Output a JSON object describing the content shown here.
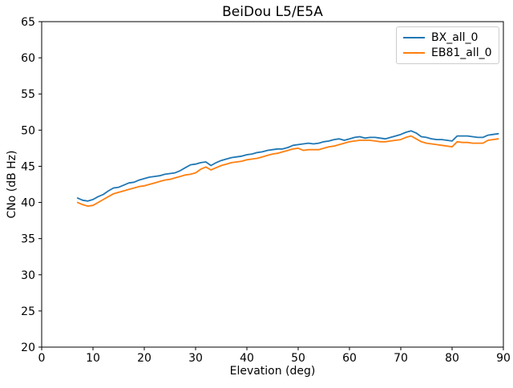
{
  "chart_data": {
    "type": "line",
    "title": "BeiDou L5/E5A",
    "xlabel": "Elevation (deg)",
    "ylabel": "CNo (dB Hz)",
    "xlim": [
      0,
      90
    ],
    "ylim": [
      20,
      65
    ],
    "x_ticks": [
      0,
      10,
      20,
      30,
      40,
      50,
      60,
      70,
      80,
      90
    ],
    "y_ticks": [
      20,
      25,
      30,
      35,
      40,
      45,
      50,
      55,
      60,
      65
    ],
    "grid": false,
    "legend_position": "upper right",
    "x": [
      7,
      8,
      9,
      10,
      11,
      12,
      13,
      14,
      15,
      16,
      17,
      18,
      19,
      20,
      21,
      22,
      23,
      24,
      25,
      26,
      27,
      28,
      29,
      30,
      31,
      32,
      33,
      34,
      35,
      36,
      37,
      38,
      39,
      40,
      41,
      42,
      43,
      44,
      45,
      46,
      47,
      48,
      49,
      50,
      51,
      52,
      53,
      54,
      55,
      56,
      57,
      58,
      59,
      60,
      61,
      62,
      63,
      64,
      65,
      66,
      67,
      68,
      69,
      70,
      71,
      72,
      73,
      74,
      75,
      76,
      77,
      78,
      79,
      80,
      81,
      82,
      83,
      84,
      85,
      86,
      87,
      88,
      89
    ],
    "series": [
      {
        "name": "BX_all_0",
        "color": "#1f77b4",
        "values": [
          40.6,
          40.3,
          40.2,
          40.4,
          40.8,
          41.1,
          41.6,
          42.0,
          42.1,
          42.4,
          42.7,
          42.8,
          43.1,
          43.3,
          43.5,
          43.6,
          43.7,
          43.9,
          44.0,
          44.1,
          44.4,
          44.8,
          45.2,
          45.3,
          45.5,
          45.6,
          45.1,
          45.5,
          45.8,
          46.0,
          46.2,
          46.3,
          46.4,
          46.6,
          46.7,
          46.9,
          47.0,
          47.2,
          47.3,
          47.4,
          47.4,
          47.6,
          47.9,
          48.0,
          48.1,
          48.2,
          48.1,
          48.2,
          48.4,
          48.5,
          48.7,
          48.8,
          48.6,
          48.8,
          49.0,
          49.1,
          48.9,
          49.0,
          49.0,
          48.9,
          48.8,
          49.0,
          49.2,
          49.4,
          49.7,
          49.9,
          49.6,
          49.1,
          49.0,
          48.8,
          48.7,
          48.7,
          48.6,
          48.5,
          49.2,
          49.2,
          49.2,
          49.1,
          49.0,
          49.0,
          49.3,
          49.4,
          49.5
        ]
      },
      {
        "name": "EB81_all_0",
        "color": "#ff7f0e",
        "values": [
          40.0,
          39.7,
          39.5,
          39.6,
          40.0,
          40.4,
          40.8,
          41.2,
          41.4,
          41.6,
          41.8,
          42.0,
          42.2,
          42.3,
          42.5,
          42.7,
          42.9,
          43.1,
          43.2,
          43.4,
          43.6,
          43.8,
          43.9,
          44.1,
          44.6,
          44.9,
          44.5,
          44.8,
          45.1,
          45.3,
          45.5,
          45.6,
          45.7,
          45.9,
          46.0,
          46.1,
          46.3,
          46.5,
          46.7,
          46.8,
          47.0,
          47.2,
          47.4,
          47.5,
          47.2,
          47.3,
          47.3,
          47.3,
          47.5,
          47.7,
          47.8,
          48.0,
          48.2,
          48.4,
          48.5,
          48.6,
          48.6,
          48.6,
          48.5,
          48.4,
          48.4,
          48.5,
          48.6,
          48.7,
          49.0,
          49.2,
          48.8,
          48.4,
          48.2,
          48.1,
          48.0,
          47.9,
          47.8,
          47.7,
          48.4,
          48.3,
          48.3,
          48.2,
          48.2,
          48.2,
          48.6,
          48.7,
          48.8
        ]
      }
    ]
  }
}
